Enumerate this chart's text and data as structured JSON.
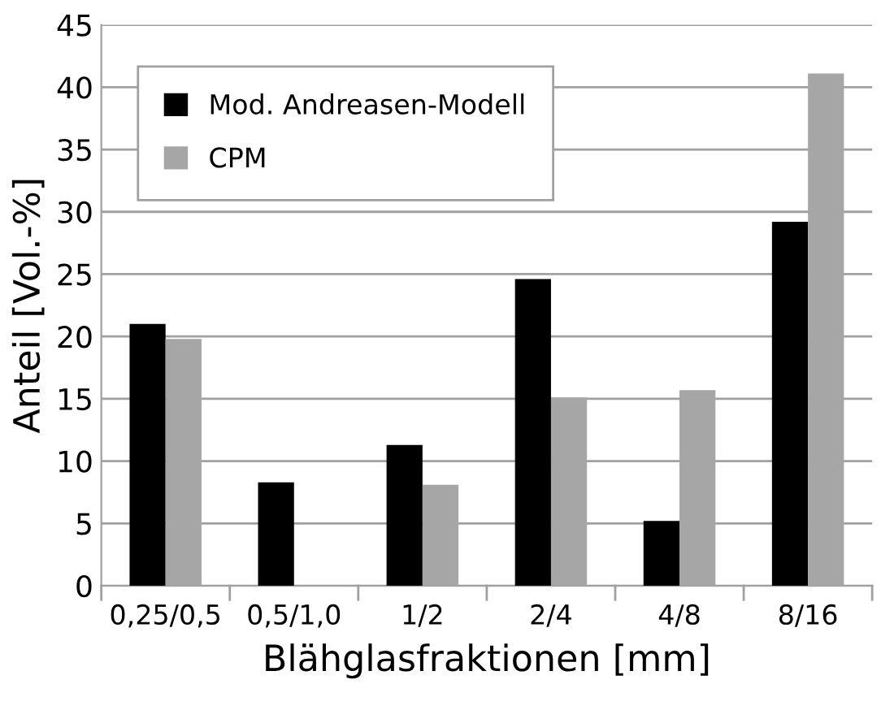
{
  "chart_data": {
    "type": "bar",
    "xlabel": "Blähglasfraktionen [mm]",
    "ylabel": "Anteil [Vol.-%]",
    "categories": [
      "0,25/0,5",
      "0,5/1,0",
      "1/2",
      "2/4",
      "4/8",
      "8/16"
    ],
    "series": [
      {
        "name": "Mod. Andreasen-Modell",
        "color": "#000000",
        "values": [
          21.0,
          8.3,
          11.3,
          24.6,
          5.2,
          29.2
        ]
      },
      {
        "name": "CPM",
        "color": "#a6a6a6",
        "values": [
          19.8,
          0,
          8.1,
          15.1,
          15.7,
          41.1
        ]
      }
    ],
    "ylim": [
      0,
      45
    ],
    "yticks": [
      0,
      5,
      10,
      15,
      20,
      25,
      30,
      35,
      40,
      45
    ],
    "grid": "y",
    "legend": "top left"
  }
}
